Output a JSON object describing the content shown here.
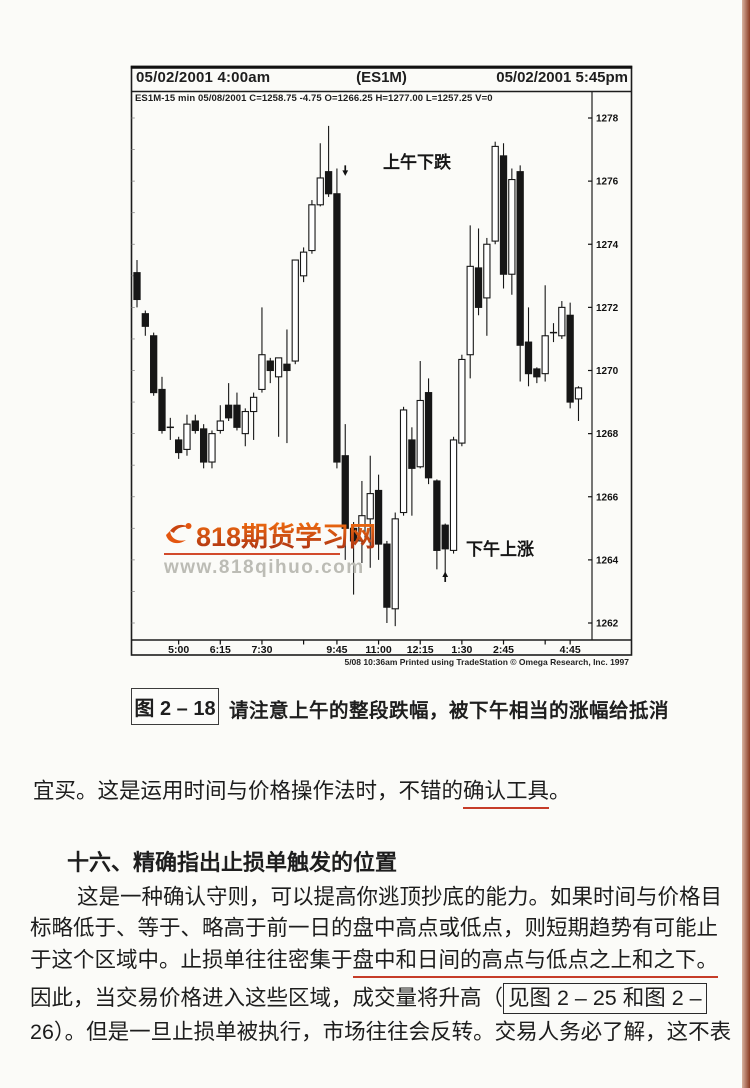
{
  "chart": {
    "header": {
      "left": "05/02/2001  4:00am",
      "center": "(ES1M)",
      "right": "05/02/2001  5:45pm"
    },
    "info_line": "ES1M-15 min   05/08/2001  C=1258.75  -4.75  O=1266.25  H=1277.00  L=1257.25  V=0",
    "footer": "5/08 10:36am Printed using TradeStation © Omega Research, Inc. 1997",
    "annotations": {
      "morning": "上午下跌",
      "afternoon": "下午上涨"
    },
    "watermark": {
      "brand": "818期货学习网",
      "url": "www.818qihuo.com",
      "brand_color_top": "#ed6a10",
      "brand_color_bottom": "#a92f12",
      "underline_color": "#d24a2b",
      "url_color": "#bcbcb5"
    }
  },
  "chart_data": {
    "type": "candlestick",
    "symbol": "ES1M",
    "interval": "15 min",
    "title": "(ES1M)",
    "session_start_label": "05/02/2001 4:00am",
    "session_end_label": "05/02/2001 5:45pm",
    "ylim": [
      1261.5,
      1278.4
    ],
    "y_ticks": [
      1262,
      1264,
      1266,
      1268,
      1270,
      1272,
      1274,
      1276,
      1278
    ],
    "x_ticks": [
      {
        "label": "5:00",
        "bar": 5
      },
      {
        "label": "6:15",
        "bar": 10
      },
      {
        "label": "7:30",
        "bar": 15
      },
      {
        "label": "",
        "bar": 20
      },
      {
        "label": "9:45",
        "bar": 24
      },
      {
        "label": "11:00",
        "bar": 29
      },
      {
        "label": "12:15",
        "bar": 34
      },
      {
        "label": "1:30",
        "bar": 39
      },
      {
        "label": "2:45",
        "bar": 44
      },
      {
        "label": "",
        "bar": 49
      },
      {
        "label": "4:45",
        "bar": 52
      }
    ],
    "bars": [
      {
        "t": "3:45",
        "o": 1273.1,
        "h": 1273.5,
        "l": 1272.0,
        "c": 1272.25
      },
      {
        "t": "4:00",
        "o": 1271.8,
        "h": 1271.9,
        "l": 1271.1,
        "c": 1271.4
      },
      {
        "t": "4:15",
        "o": 1271.1,
        "h": 1271.2,
        "l": 1269.2,
        "c": 1269.3
      },
      {
        "t": "4:30",
        "o": 1269.4,
        "h": 1269.8,
        "l": 1268.0,
        "c": 1268.1
      },
      {
        "t": "4:45",
        "o": 1268.2,
        "h": 1268.5,
        "l": 1267.8,
        "c": 1268.2
      },
      {
        "t": "5:00",
        "o": 1267.8,
        "h": 1267.9,
        "l": 1267.2,
        "c": 1267.4
      },
      {
        "t": "5:15",
        "o": 1267.5,
        "h": 1268.6,
        "l": 1267.3,
        "c": 1268.3
      },
      {
        "t": "5:30",
        "o": 1268.4,
        "h": 1268.6,
        "l": 1268.0,
        "c": 1268.1
      },
      {
        "t": "5:45",
        "o": 1268.15,
        "h": 1268.3,
        "l": 1266.9,
        "c": 1267.1
      },
      {
        "t": "6:00",
        "o": 1267.1,
        "h": 1268.1,
        "l": 1266.9,
        "c": 1268.0
      },
      {
        "t": "6:15",
        "o": 1268.1,
        "h": 1268.9,
        "l": 1268.0,
        "c": 1268.4
      },
      {
        "t": "6:30",
        "o": 1268.9,
        "h": 1269.6,
        "l": 1268.4,
        "c": 1268.5
      },
      {
        "t": "6:45",
        "o": 1268.9,
        "h": 1269.3,
        "l": 1268.1,
        "c": 1268.2
      },
      {
        "t": "7:00",
        "o": 1268.0,
        "h": 1268.8,
        "l": 1267.6,
        "c": 1268.7
      },
      {
        "t": "7:15",
        "o": 1268.7,
        "h": 1269.3,
        "l": 1267.8,
        "c": 1269.15
      },
      {
        "t": "7:30",
        "o": 1269.4,
        "h": 1272.0,
        "l": 1269.3,
        "c": 1270.5
      },
      {
        "t": "7:45",
        "o": 1270.3,
        "h": 1270.4,
        "l": 1269.6,
        "c": 1270.0
      },
      {
        "t": "8:00",
        "o": 1269.8,
        "h": 1270.4,
        "l": 1267.9,
        "c": 1270.4
      },
      {
        "t": "8:15",
        "o": 1270.2,
        "h": 1271.3,
        "l": 1267.7,
        "c": 1270.0
      },
      {
        "t": "8:30",
        "o": 1270.3,
        "h": 1273.5,
        "l": 1270.2,
        "c": 1273.5
      },
      {
        "t": "8:45",
        "o": 1273.0,
        "h": 1273.9,
        "l": 1272.8,
        "c": 1273.75
      },
      {
        "t": "9:00",
        "o": 1273.8,
        "h": 1275.4,
        "l": 1273.7,
        "c": 1275.25
      },
      {
        "t": "9:15",
        "o": 1275.25,
        "h": 1277.2,
        "l": 1275.2,
        "c": 1276.1
      },
      {
        "t": "9:30",
        "o": 1276.3,
        "h": 1277.75,
        "l": 1275.5,
        "c": 1275.6
      },
      {
        "t": "9:45",
        "o": 1275.6,
        "h": 1276.4,
        "l": 1266.9,
        "c": 1267.1
      },
      {
        "t": "10:00",
        "o": 1267.3,
        "h": 1268.3,
        "l": 1264.0,
        "c": 1265.0
      },
      {
        "t": "10:15",
        "o": 1265.0,
        "h": 1265.2,
        "l": 1262.9,
        "c": 1264.6
      },
      {
        "t": "10:30",
        "o": 1264.6,
        "h": 1266.5,
        "l": 1263.9,
        "c": 1265.4
      },
      {
        "t": "10:45",
        "o": 1265.3,
        "h": 1267.3,
        "l": 1263.75,
        "c": 1266.1
      },
      {
        "t": "11:00",
        "o": 1266.2,
        "h": 1266.7,
        "l": 1264.0,
        "c": 1264.5
      },
      {
        "t": "11:15",
        "o": 1264.5,
        "h": 1264.6,
        "l": 1262.0,
        "c": 1262.5
      },
      {
        "t": "11:30",
        "o": 1262.45,
        "h": 1265.5,
        "l": 1261.9,
        "c": 1265.3
      },
      {
        "t": "11:45",
        "o": 1265.5,
        "h": 1268.85,
        "l": 1265.4,
        "c": 1268.75
      },
      {
        "t": "12:00",
        "o": 1267.8,
        "h": 1268.2,
        "l": 1265.4,
        "c": 1266.9
      },
      {
        "t": "12:15",
        "o": 1266.95,
        "h": 1270.3,
        "l": 1266.9,
        "c": 1269.05
      },
      {
        "t": "12:30",
        "o": 1269.3,
        "h": 1269.75,
        "l": 1266.4,
        "c": 1266.6
      },
      {
        "t": "12:45",
        "o": 1266.5,
        "h": 1266.55,
        "l": 1263.7,
        "c": 1264.3
      },
      {
        "t": "1:00",
        "o": 1265.1,
        "h": 1265.15,
        "l": 1263.5,
        "c": 1264.35
      },
      {
        "t": "1:15",
        "o": 1264.3,
        "h": 1267.9,
        "l": 1264.2,
        "c": 1267.8
      },
      {
        "t": "1:30",
        "o": 1267.7,
        "h": 1270.5,
        "l": 1267.6,
        "c": 1270.35
      },
      {
        "t": "1:45",
        "o": 1270.5,
        "h": 1274.6,
        "l": 1269.75,
        "c": 1273.3
      },
      {
        "t": "2:00",
        "o": 1273.25,
        "h": 1274.5,
        "l": 1271.75,
        "c": 1272.0
      },
      {
        "t": "2:15",
        "o": 1272.3,
        "h": 1274.2,
        "l": 1271.1,
        "c": 1274.0
      },
      {
        "t": "2:30",
        "o": 1274.1,
        "h": 1277.25,
        "l": 1274.0,
        "c": 1277.1
      },
      {
        "t": "2:45",
        "o": 1276.8,
        "h": 1277.2,
        "l": 1272.6,
        "c": 1273.05
      },
      {
        "t": "3:00",
        "o": 1273.05,
        "h": 1276.4,
        "l": 1272.4,
        "c": 1276.05
      },
      {
        "t": "3:15",
        "o": 1276.3,
        "h": 1276.5,
        "l": 1269.65,
        "c": 1270.8
      },
      {
        "t": "3:30",
        "o": 1270.9,
        "h": 1272.0,
        "l": 1269.5,
        "c": 1269.9
      },
      {
        "t": "3:45",
        "o": 1270.05,
        "h": 1270.1,
        "l": 1269.6,
        "c": 1269.8
      },
      {
        "t": "4:00",
        "o": 1269.9,
        "h": 1272.7,
        "l": 1269.65,
        "c": 1271.1
      },
      {
        "t": "4:15",
        "o": 1271.1,
        "h": 1271.5,
        "l": 1270.9,
        "c": 1271.2
      },
      {
        "t": "4:30",
        "o": 1271.1,
        "h": 1272.2,
        "l": 1271.0,
        "c": 1272.0
      },
      {
        "t": "4:45",
        "o": 1271.75,
        "h": 1272.15,
        "l": 1268.8,
        "c": 1269.0
      },
      {
        "t": "5:00",
        "o": 1269.1,
        "h": 1269.5,
        "l": 1268.4,
        "c": 1269.45
      }
    ],
    "markers": [
      {
        "type": "down-arrow",
        "bar": 25,
        "price": 1276.5
      },
      {
        "type": "up-arrow",
        "bar": 37,
        "price": 1263.3
      }
    ],
    "legend_position": "none",
    "grid": false
  },
  "caption": {
    "figure_label": "图 2 – 18",
    "text": "请注意上午的整段跌幅，被下午相当的涨幅给抵消"
  },
  "body": {
    "para1": {
      "lead": "宜买。这是运用时间与价格操作法时，不错的",
      "underlined": "确认工具",
      "tail": "。"
    },
    "heading": "十六、精确指出止损单触发的位置",
    "para2": {
      "line1": "这是一种确认守则，可以提高你逃顶抄底的能力。如果时间与价格目",
      "line2": "标略低于、等于、略高于前一日的盘中高点或低点，则短期趋势有可能止",
      "line3_lead": "于这个区域中。止损单往往密集于",
      "line3_underlined": "盘中和日间的高点与低点之上和之下。",
      "line4_lead": "因此，当交易价格进入这些区域，成交量将升高（",
      "line4_boxed": "见图 2 – 25 和图 2 –",
      "line5": "26）。但是一旦止损单被执行，市场往往会反转。交易人务必了解，这不表"
    }
  }
}
